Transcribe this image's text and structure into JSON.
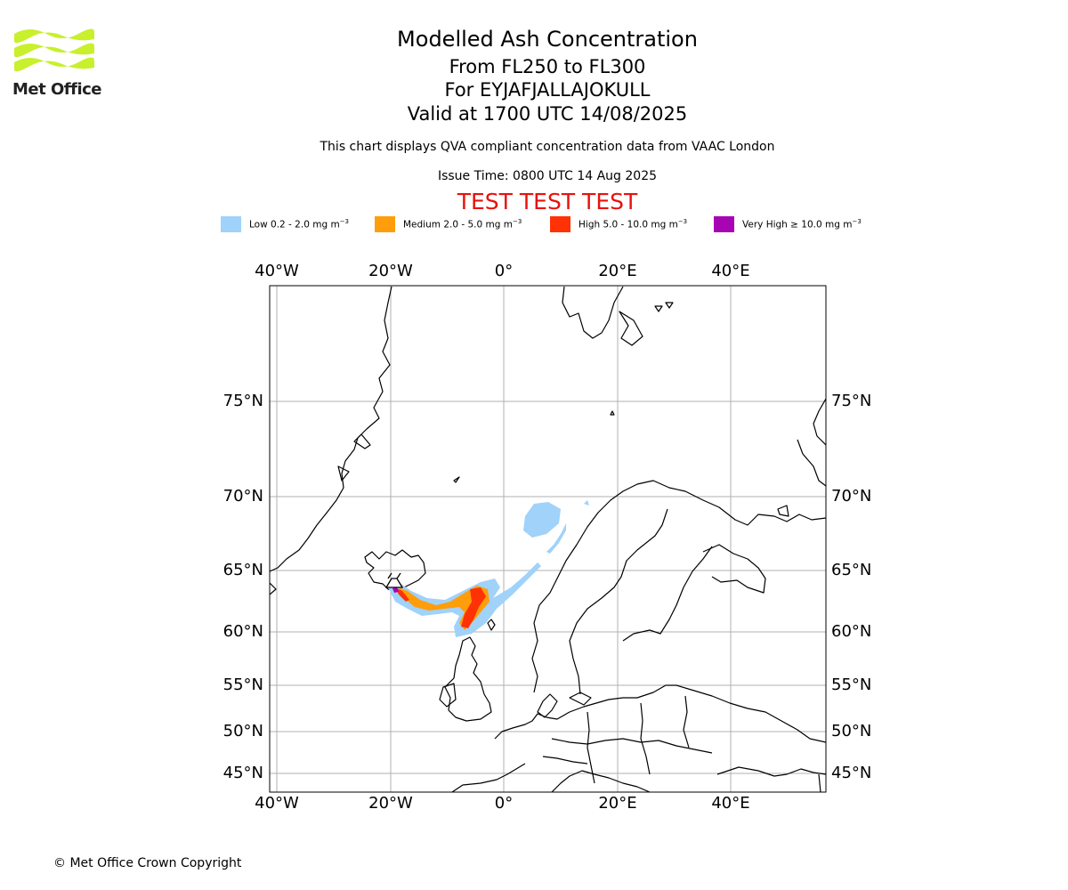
{
  "header": {
    "title": "Modelled Ash Concentration",
    "levels": "From FL250 to FL300",
    "volcano": "For EYJAFJALLAJOKULL",
    "valid": "Valid at 1700 UTC 14/08/2025",
    "description": "This chart displays QVA compliant concentration data from VAAC London",
    "issue_time": "Issue Time: 0800 UTC 14 Aug 2025",
    "test_banner": "TEST TEST TEST"
  },
  "logo": {
    "text": "Met Office",
    "color": "#c8f02c"
  },
  "legend": [
    {
      "prefix": "Low 0.2 - 2.0 mg m",
      "sup": "−3",
      "color": "#a0d2fa"
    },
    {
      "prefix": "Medium 2.0 - 5.0 mg m",
      "sup": "−3",
      "color": "#ff9d0a"
    },
    {
      "prefix": "High 5.0 - 10.0 mg m",
      "sup": "−3",
      "color": "#ff3206"
    },
    {
      "prefix": "Very High ≥ 10.0 mg m",
      "sup": "−3",
      "color": "#a704b3"
    }
  ],
  "map": {
    "lon_ticks": [
      "40°W",
      "20°W",
      "0°",
      "20°E",
      "40°E"
    ],
    "lat_ticks": [
      "75°N",
      "70°N",
      "65°N",
      "60°N",
      "55°N",
      "50°N",
      "45°N"
    ],
    "volcano_marker": "volcano-triangle"
  },
  "footer": {
    "copyright": "© Met Office Crown Copyright"
  }
}
